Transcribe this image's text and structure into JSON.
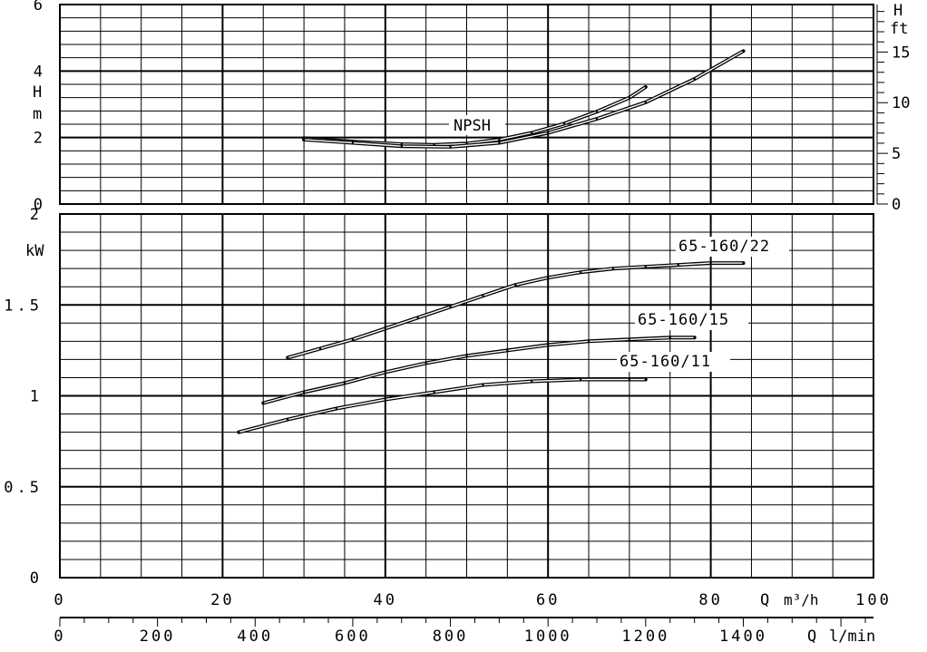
{
  "chart_data": [
    {
      "type": "line",
      "panel": "npsh",
      "ylabel": "H",
      "yunit": "m",
      "ylim": [
        0,
        6
      ],
      "yticks": [
        "0",
        "2",
        "4",
        "6"
      ],
      "right_axis": {
        "label": "H",
        "unit": "ft",
        "ticks": [
          "0",
          "5",
          "10",
          "15"
        ]
      },
      "annotation": "NPSH",
      "xlim": [
        0,
        100
      ],
      "series": [
        {
          "name": "",
          "x": [
            30,
            36,
            42,
            46,
            50,
            54,
            58,
            62,
            66,
            70,
            72
          ],
          "values": [
            1.98,
            1.88,
            1.8,
            1.78,
            1.82,
            1.94,
            2.14,
            2.42,
            2.78,
            3.2,
            3.52
          ]
        },
        {
          "name": "",
          "x": [
            30,
            36,
            42,
            48,
            54,
            60,
            66,
            72,
            78,
            84
          ],
          "values": [
            1.94,
            1.84,
            1.74,
            1.72,
            1.84,
            2.14,
            2.56,
            3.06,
            3.76,
            4.6
          ]
        }
      ]
    },
    {
      "type": "line",
      "panel": "power",
      "ylabel": "kW",
      "ylim": [
        0,
        2
      ],
      "yticks": [
        "0",
        "0.5",
        "1",
        "1.5",
        "2"
      ],
      "xlim": [
        0,
        100
      ],
      "series": [
        {
          "name": "65-160/22",
          "x": [
            28,
            32,
            36,
            40,
            44,
            48,
            52,
            56,
            60,
            64,
            68,
            72,
            76,
            80,
            84
          ],
          "values": [
            1.21,
            1.26,
            1.31,
            1.37,
            1.43,
            1.49,
            1.55,
            1.61,
            1.65,
            1.68,
            1.7,
            1.71,
            1.72,
            1.73,
            1.73
          ]
        },
        {
          "name": "65-160/15",
          "x": [
            25,
            30,
            35,
            40,
            45,
            50,
            55,
            60,
            65,
            70,
            75,
            78
          ],
          "values": [
            0.96,
            1.02,
            1.07,
            1.13,
            1.18,
            1.22,
            1.25,
            1.28,
            1.3,
            1.31,
            1.32,
            1.32
          ]
        },
        {
          "name": "65-160/11",
          "x": [
            22,
            28,
            34,
            40,
            46,
            52,
            58,
            64,
            70,
            72
          ],
          "values": [
            0.8,
            0.87,
            0.93,
            0.98,
            1.02,
            1.06,
            1.08,
            1.09,
            1.09,
            1.09
          ]
        }
      ]
    }
  ],
  "x_axis_primary": {
    "label": "Q",
    "unit": "m³/h",
    "ticks": [
      "0",
      "20",
      "40",
      "60",
      "80",
      "100"
    ]
  },
  "x_axis_secondary": {
    "label": "Q",
    "unit": "l/min",
    "ticks": [
      "0",
      "200",
      "400",
      "600",
      "800",
      "1000",
      "1200",
      "1400"
    ]
  }
}
